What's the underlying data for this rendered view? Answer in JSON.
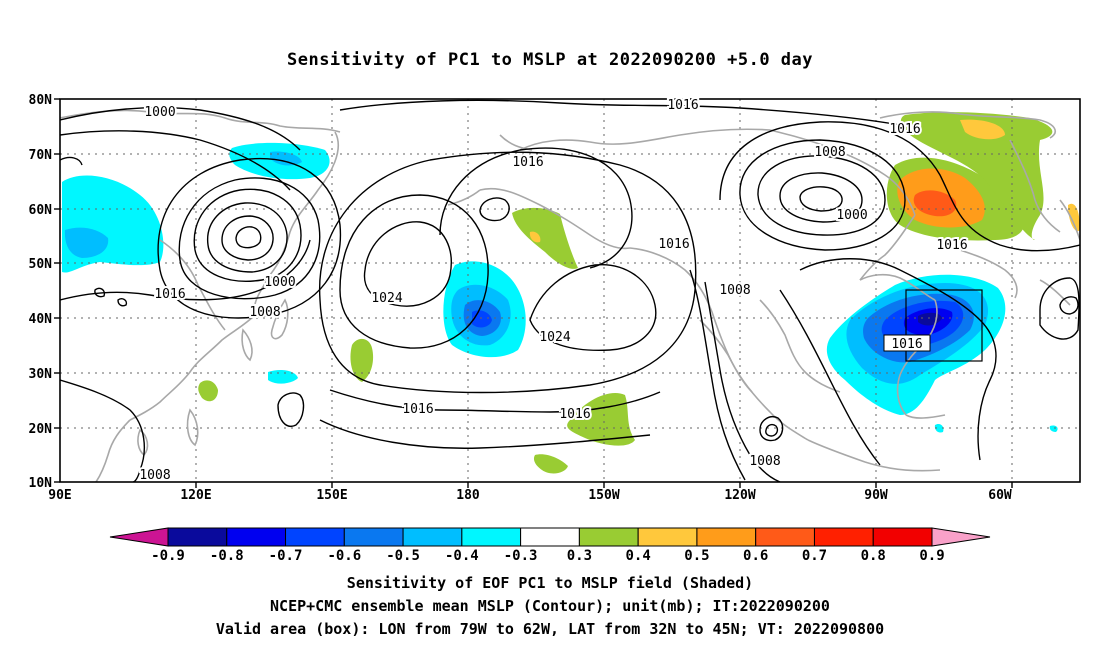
{
  "title": "Sensitivity of PC1 to MSLP at 2022090200 +5.0 day",
  "lat_labels": [
    "80N",
    "70N",
    "60N",
    "50N",
    "40N",
    "30N",
    "20N",
    "10N"
  ],
  "lon_labels": [
    "90E",
    "120E",
    "150E",
    "180",
    "150W",
    "120W",
    "90W",
    "60W"
  ],
  "contour_labels": {
    "c1000_nw": "1000",
    "c1016_top": "1016",
    "c1016_ne": "1016",
    "c1016_np": "1016",
    "c1008_na": "1008",
    "c1000_na": "1000",
    "c1016_nam": "1016",
    "c1000_asia": "1000",
    "c1016_asia": "1016",
    "c1008_asia": "1008",
    "c1024_w": "1024",
    "c1024_e": "1024",
    "c1008_mid": "1008",
    "c1016_box": "1016",
    "c1016_s1": "1016",
    "c1016_s2": "1016",
    "c1008_mex": "1008",
    "c1008_sw": "1008"
  },
  "colorbar": {
    "labels": [
      "-0.9",
      "-0.8",
      "-0.7",
      "-0.6",
      "-0.5",
      "-0.4",
      "-0.3",
      "0.3",
      "0.4",
      "0.5",
      "0.6",
      "0.7",
      "0.8",
      "0.9"
    ],
    "colors": [
      "#0a0a9c",
      "#0000f0",
      "#0044ff",
      "#0a78f0",
      "#00beff",
      "#00f7ff",
      "#ffffff",
      "#99cc33",
      "#ffc83c",
      "#ff9c1a",
      "#ff5a18",
      "#ff2000",
      "#f20000"
    ],
    "low_end_color": "#cc1493",
    "high_end_color": "#f9a1c9"
  },
  "caption": {
    "line1": "Sensitivity of EOF PC1 to MSLP field (Shaded)",
    "line2": "NCEP+CMC ensemble mean MSLP (Contour); unit(mb); IT:2022090200",
    "line3": "Valid area (box): LON from 79W to 62W, LAT from 32N to 45N; VT: 2022090800"
  }
}
